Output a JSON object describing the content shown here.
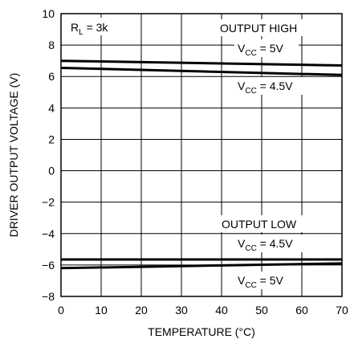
{
  "chart_data": {
    "type": "line",
    "xlabel": "TEMPERATURE (°C)",
    "ylabel": "DRIVER OUTPUT VOLTAGE (V)",
    "xlim": [
      0,
      70
    ],
    "ylim": [
      -8,
      10
    ],
    "xticks": [
      0,
      10,
      20,
      30,
      40,
      50,
      60,
      70
    ],
    "yticks": [
      -8,
      -6,
      -4,
      -2,
      0,
      2,
      4,
      6,
      8,
      10
    ],
    "ytick_labels": [
      "−8",
      "−6",
      "−4",
      "−2",
      "0",
      "2",
      "4",
      "6",
      "8",
      "10"
    ],
    "grid": true,
    "condition": {
      "prefix": "R",
      "sub": "L",
      "suffix": " = 3k"
    },
    "group_labels": {
      "high": "OUTPUT HIGH",
      "low": "OUTPUT LOW"
    },
    "series": [
      {
        "name": "OUTPUT HIGH, VCC = 5V",
        "x": [
          0,
          70
        ],
        "y": [
          7.0,
          6.7
        ]
      },
      {
        "name": "OUTPUT HIGH, VCC = 4.5V",
        "x": [
          0,
          70
        ],
        "y": [
          6.55,
          6.1
        ]
      },
      {
        "name": "OUTPUT LOW, VCC = 4.5V",
        "x": [
          0,
          70
        ],
        "y": [
          -5.65,
          -5.65
        ]
      },
      {
        "name": "OUTPUT LOW, VCC = 5V",
        "x": [
          0,
          70
        ],
        "y": [
          -6.2,
          -5.9
        ]
      }
    ],
    "series_labels": [
      {
        "prefix": "V",
        "sub": "CC",
        "suffix": " = 5V"
      },
      {
        "prefix": "V",
        "sub": "CC",
        "suffix": " = 4.5V"
      },
      {
        "prefix": "V",
        "sub": "CC",
        "suffix": " = 4.5V"
      },
      {
        "prefix": "V",
        "sub": "CC",
        "suffix": " = 5V"
      }
    ]
  }
}
